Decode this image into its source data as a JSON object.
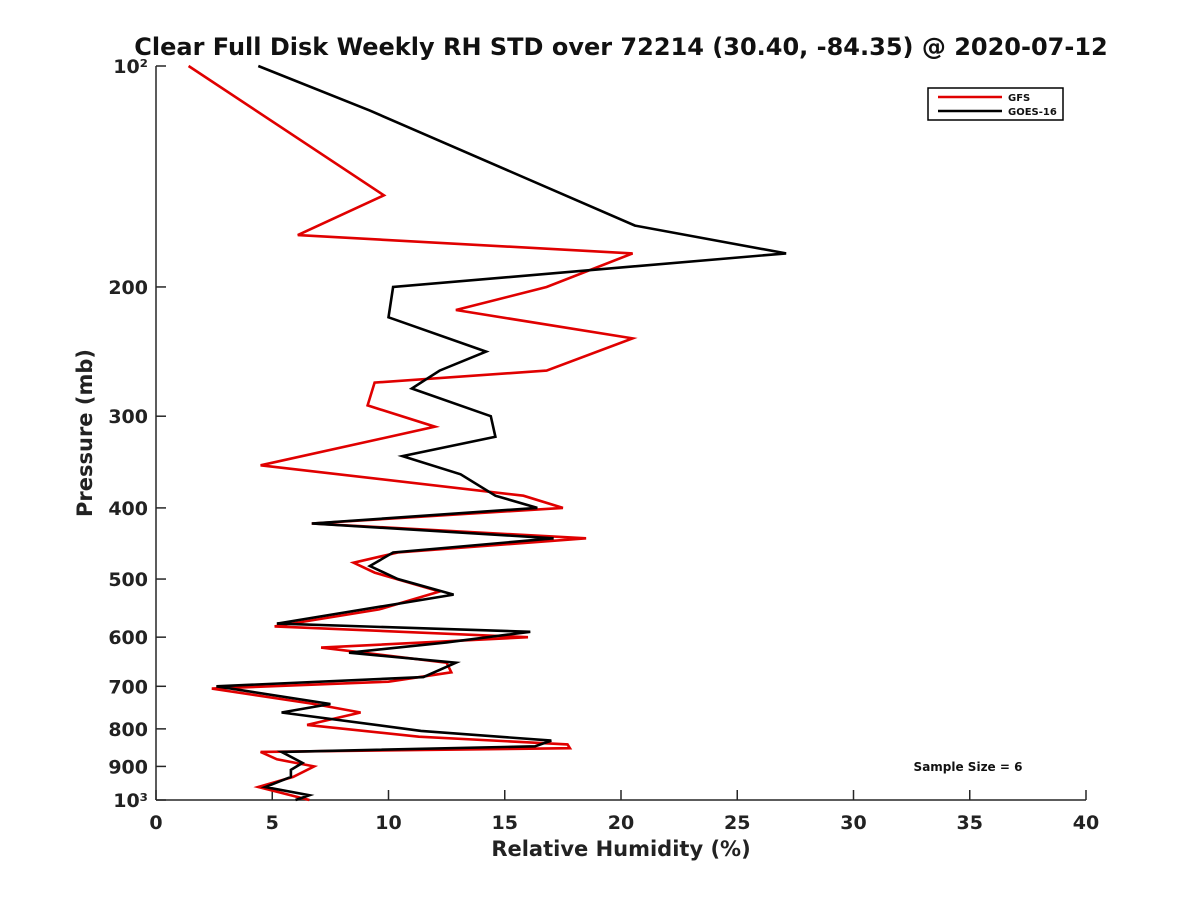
{
  "chart_data": {
    "type": "line",
    "title": "Clear Full Disk Weekly RH STD over 72214 (30.40, -84.35) @ 2020-07-12",
    "xlabel": "Relative Humidity (%)",
    "ylabel": "Pressure (mb)",
    "xlim": [
      0,
      40
    ],
    "ylim": [
      100,
      1000
    ],
    "yscale": "log",
    "y_reversed": true,
    "xticks": [
      0,
      5,
      10,
      15,
      20,
      25,
      30,
      35,
      40
    ],
    "xtick_labels": [
      "0",
      "5",
      "10",
      "15",
      "20",
      "25",
      "30",
      "35",
      "40"
    ],
    "yticks": [
      100,
      200,
      300,
      400,
      500,
      600,
      700,
      800,
      900,
      1000
    ],
    "ytick_labels": [
      "10²",
      "200",
      "300",
      "400",
      "500",
      "600",
      "700",
      "800",
      "900",
      "10³"
    ],
    "legend_position": "top-right",
    "annotation": "Sample Size = 6",
    "series": [
      {
        "name": "GFS",
        "color": "#e00000",
        "points": [
          [
            1.4,
            100
          ],
          [
            9.8,
            150
          ],
          [
            6.1,
            170
          ],
          [
            20.5,
            180
          ],
          [
            16.8,
            200
          ],
          [
            12.9,
            215
          ],
          [
            20.5,
            235
          ],
          [
            16.8,
            260
          ],
          [
            9.4,
            270
          ],
          [
            9.1,
            290
          ],
          [
            12.0,
            310
          ],
          [
            4.5,
            350
          ],
          [
            15.8,
            385
          ],
          [
            17.5,
            400
          ],
          [
            6.7,
            420
          ],
          [
            18.5,
            440
          ],
          [
            10.4,
            460
          ],
          [
            8.5,
            475
          ],
          [
            9.4,
            490
          ],
          [
            12.2,
            520
          ],
          [
            9.6,
            550
          ],
          [
            5.1,
            580
          ],
          [
            16.0,
            600
          ],
          [
            7.1,
            620
          ],
          [
            12.5,
            650
          ],
          [
            12.7,
            670
          ],
          [
            10.0,
            690
          ],
          [
            2.4,
            705
          ],
          [
            6.8,
            740
          ],
          [
            8.8,
            760
          ],
          [
            6.5,
            790
          ],
          [
            11.3,
            820
          ],
          [
            17.7,
            840
          ],
          [
            17.8,
            850
          ],
          [
            4.5,
            860
          ],
          [
            5.2,
            880
          ],
          [
            6.8,
            900
          ],
          [
            5.9,
            930
          ],
          [
            4.4,
            960
          ],
          [
            6.6,
            1000
          ]
        ]
      },
      {
        "name": "GOES-16",
        "color": "#000000",
        "points": [
          [
            4.4,
            100
          ],
          [
            9.2,
            115
          ],
          [
            20.6,
            165
          ],
          [
            27.1,
            180
          ],
          [
            10.2,
            200
          ],
          [
            10.0,
            220
          ],
          [
            14.2,
            245
          ],
          [
            12.2,
            260
          ],
          [
            11.0,
            275
          ],
          [
            14.4,
            300
          ],
          [
            14.6,
            320
          ],
          [
            10.6,
            340
          ],
          [
            13.1,
            360
          ],
          [
            14.6,
            385
          ],
          [
            16.4,
            400
          ],
          [
            6.7,
            420
          ],
          [
            17.1,
            440
          ],
          [
            10.2,
            460
          ],
          [
            9.2,
            480
          ],
          [
            10.4,
            500
          ],
          [
            12.8,
            525
          ],
          [
            5.2,
            575
          ],
          [
            16.1,
            590
          ],
          [
            12.5,
            610
          ],
          [
            8.3,
            630
          ],
          [
            12.9,
            650
          ],
          [
            11.5,
            680
          ],
          [
            2.6,
            700
          ],
          [
            7.5,
            740
          ],
          [
            5.4,
            760
          ],
          [
            11.4,
            805
          ],
          [
            17.0,
            830
          ],
          [
            16.3,
            845
          ],
          [
            5.4,
            860
          ],
          [
            6.3,
            890
          ],
          [
            5.8,
            910
          ],
          [
            5.8,
            930
          ],
          [
            4.7,
            960
          ],
          [
            6.6,
            985
          ],
          [
            6.0,
            1000
          ]
        ]
      }
    ]
  }
}
